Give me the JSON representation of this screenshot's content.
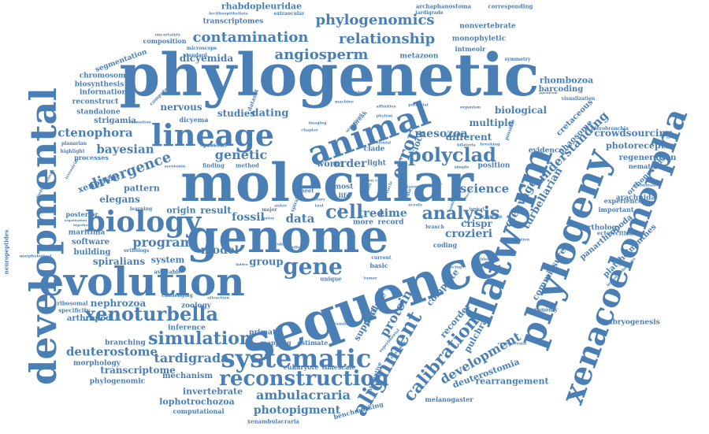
{
  "color": "#4a7fb5",
  "words": [
    {
      "text": "phylogenetic",
      "weight": 100
    },
    {
      "text": "molecular",
      "weight": 90
    },
    {
      "text": "sequence",
      "weight": 88
    },
    {
      "text": "genome",
      "weight": 80
    },
    {
      "text": "evolution",
      "weight": 72
    },
    {
      "text": "developmental",
      "weight": 70
    },
    {
      "text": "flatworm",
      "weight": 68
    },
    {
      "text": "phylogeny",
      "weight": 62
    },
    {
      "text": "xenacoelomorpha",
      "weight": 58
    },
    {
      "text": "animal",
      "weight": 56
    },
    {
      "text": "lineage",
      "weight": 52
    },
    {
      "text": "biology",
      "weight": 46
    },
    {
      "text": "systematic",
      "weight": 40
    },
    {
      "text": "reconstruction",
      "weight": 36
    },
    {
      "text": "xenoturbella",
      "weight": 32
    },
    {
      "text": "gene",
      "weight": 34
    },
    {
      "text": "polyclad",
      "weight": 30
    },
    {
      "text": "alignment",
      "weight": 30
    },
    {
      "text": "analysis",
      "weight": 28
    },
    {
      "text": "simulation",
      "weight": 28
    },
    {
      "text": "cell",
      "weight": 30
    },
    {
      "text": "error",
      "weight": 26
    },
    {
      "text": "calibration",
      "weight": 26
    },
    {
      "text": "phylogenomics",
      "weight": 24
    },
    {
      "text": "contamination",
      "weight": 22
    },
    {
      "text": "angiosperm",
      "weight": 22
    },
    {
      "text": "relationship",
      "weight": 22
    },
    {
      "text": "divergence",
      "weight": 22
    },
    {
      "text": "ambulacraria",
      "weight": 20
    },
    {
      "text": "tardigrada",
      "weight": 20
    },
    {
      "text": "development",
      "weight": 20
    },
    {
      "text": "protein",
      "weight": 20
    },
    {
      "text": "genetic",
      "weight": 20
    },
    {
      "text": "bayesian",
      "weight": 18
    },
    {
      "text": "ctenophora",
      "weight": 18
    },
    {
      "text": "deuterostome",
      "weight": 18
    },
    {
      "text": "photopigment",
      "weight": 16
    },
    {
      "text": "program",
      "weight": 18
    },
    {
      "text": "model",
      "weight": 18
    },
    {
      "text": "fossil",
      "weight": 18
    },
    {
      "text": "science",
      "weight": 18
    },
    {
      "text": "crozieri",
      "weight": 16
    },
    {
      "text": "mesozoa",
      "weight": 18
    },
    {
      "text": "understanding",
      "weight": 18
    },
    {
      "text": "cleavage",
      "weight": 18
    },
    {
      "text": "turbellarian",
      "weight": 16
    },
    {
      "text": "data",
      "weight": 18
    },
    {
      "text": "tree",
      "weight": 18
    },
    {
      "text": "time",
      "weight": 16
    },
    {
      "text": "order",
      "weight": 16
    },
    {
      "text": "dating",
      "weight": 16
    },
    {
      "text": "studies",
      "weight": 14
    },
    {
      "text": "nervous",
      "weight": 14
    },
    {
      "text": "dicyemida",
      "weight": 14
    },
    {
      "text": "different",
      "weight": 14
    },
    {
      "text": "multiple",
      "weight": 14
    },
    {
      "text": "biological",
      "weight": 14
    },
    {
      "text": "nephrozoa",
      "weight": 14
    },
    {
      "text": "elegans",
      "weight": 14
    },
    {
      "text": "spiralians",
      "weight": 14
    },
    {
      "text": "transcriptome",
      "weight": 14
    },
    {
      "text": "invertebrate",
      "weight": 13
    },
    {
      "text": "lophotrochozoa",
      "weight": 13
    },
    {
      "text": "group",
      "weight": 14
    },
    {
      "text": "worm",
      "weight": 12
    },
    {
      "text": "clock",
      "weight": 12
    },
    {
      "text": "recorder",
      "weight": 12
    },
    {
      "text": "complete",
      "weight": 12
    },
    {
      "text": "analyse",
      "weight": 12
    },
    {
      "text": "support",
      "weight": 12
    },
    {
      "text": "pulchra",
      "weight": 12
    },
    {
      "text": "deuterostomia",
      "weight": 12
    },
    {
      "text": "rearrangement",
      "weight": 12
    },
    {
      "text": "commissure",
      "weight": 12
    },
    {
      "text": "crowdsourcing",
      "weight": 12
    },
    {
      "text": "photoreceptor",
      "weight": 11
    },
    {
      "text": "regeneration",
      "weight": 11
    },
    {
      "text": "cretaceous",
      "weight": 11
    },
    {
      "text": "phaosome",
      "weight": 10
    },
    {
      "text": "rhombozoa",
      "weight": 11
    },
    {
      "text": "barcoding",
      "weight": 11
    },
    {
      "text": "panarthropoda",
      "weight": 11
    },
    {
      "text": "platyhelminthes",
      "weight": 11
    },
    {
      "text": "embryogenesis",
      "weight": 10
    },
    {
      "text": "orthonectids",
      "weight": 10
    },
    {
      "text": "orthology",
      "weight": 10
    },
    {
      "text": "arachnida",
      "weight": 10
    },
    {
      "text": "nematoda",
      "weight": 9
    },
    {
      "text": "experience",
      "weight": 9
    },
    {
      "text": "important",
      "weight": 9
    },
    {
      "text": "ectolecithal",
      "weight": 8
    },
    {
      "text": "evidence",
      "weight": 10
    },
    {
      "text": "position",
      "weight": 10
    },
    {
      "text": "crispr",
      "weight": 12
    },
    {
      "text": "result",
      "weight": 13
    },
    {
      "text": "origin",
      "weight": 12
    },
    {
      "text": "system",
      "weight": 12
    },
    {
      "text": "pattern",
      "weight": 11
    },
    {
      "text": "xenopsin",
      "weight": 12
    },
    {
      "text": "strigamia",
      "weight": 11
    },
    {
      "text": "software",
      "weight": 11
    },
    {
      "text": "building",
      "weight": 11
    },
    {
      "text": "maritima",
      "weight": 10
    },
    {
      "text": "arthropod",
      "weight": 11
    },
    {
      "text": "zoology",
      "weight": 10
    },
    {
      "text": "mechanism",
      "weight": 11
    },
    {
      "text": "morphology",
      "weight": 10
    },
    {
      "text": "phylogenomic",
      "weight": 10
    },
    {
      "text": "branching",
      "weight": 10
    },
    {
      "text": "inference",
      "weight": 10
    },
    {
      "text": "primate",
      "weight": 10
    },
    {
      "text": "mapping",
      "weight": 9
    },
    {
      "text": "estimate",
      "weight": 9
    },
    {
      "text": "eukaryote",
      "weight": 9
    },
    {
      "text": "timescale",
      "weight": 9
    },
    {
      "text": "metazoon",
      "weight": 10
    },
    {
      "text": "monophyletic",
      "weight": 10
    },
    {
      "text": "nonvertebrate",
      "weight": 10
    },
    {
      "text": "intmeoir",
      "weight": 9
    },
    {
      "text": "segmentation",
      "weight": 10
    },
    {
      "text": "chromosome",
      "weight": 10
    },
    {
      "text": "biosynthesis",
      "weight": 10
    },
    {
      "text": "information",
      "weight": 10
    },
    {
      "text": "reconstruct",
      "weight": 10
    },
    {
      "text": "standalone",
      "weight": 10
    },
    {
      "text": "rhabdopleuridae",
      "weight": 12
    },
    {
      "text": "transcriptomes",
      "weight": 10
    },
    {
      "text": "archaphanostoma",
      "weight": 8
    },
    {
      "text": "corresponding",
      "weight": 8
    },
    {
      "text": "composition",
      "weight": 9
    },
    {
      "text": "dicyema",
      "weight": 9
    },
    {
      "text": "processes",
      "weight": 9
    },
    {
      "text": "posterior",
      "weight": 9
    },
    {
      "text": "neuropeptides",
      "weight": 8
    },
    {
      "text": "computational",
      "weight": 9
    },
    {
      "text": "xenambulacraria",
      "weight": 8
    },
    {
      "text": "benchmarking",
      "weight": 9
    },
    {
      "text": "integrative",
      "weight": 8
    },
    {
      "text": "melanogaster",
      "weight": 9
    },
    {
      "text": "ribosomal",
      "weight": 8
    },
    {
      "text": "specificity",
      "weight": 8
    },
    {
      "text": "taxonomy",
      "weight": 8
    },
    {
      "text": "coding",
      "weight": 9
    },
    {
      "text": "available",
      "weight": 8
    },
    {
      "text": "learning",
      "weight": 7
    },
    {
      "text": "more",
      "weight": 10
    },
    {
      "text": "record",
      "weight": 10
    },
    {
      "text": "light",
      "weight": 10
    },
    {
      "text": "most",
      "weight": 10
    },
    {
      "text": "life",
      "weight": 9
    },
    {
      "text": "sheet",
      "weight": 8
    },
    {
      "text": "clade",
      "weight": 10
    },
    {
      "text": "method",
      "weight": 8
    },
    {
      "text": "present",
      "weight": 8
    },
    {
      "text": "finding",
      "weight": 8
    },
    {
      "text": "basic",
      "weight": 9
    },
    {
      "text": "unique",
      "weight": 8
    },
    {
      "text": "planarian",
      "weight": 7
    },
    {
      "text": "highlight",
      "weight": 7
    },
    {
      "text": "visualization",
      "weight": 7
    },
    {
      "text": "symmetry",
      "weight": 7
    },
    {
      "text": "pterobranchia",
      "weight": 7
    },
    {
      "text": "illumination",
      "weight": 6
    },
    {
      "text": "lophotrochozoans",
      "weight": 6
    },
    {
      "text": "tardigrade",
      "weight": 7
    },
    {
      "text": "extraocular",
      "weight": 7
    },
    {
      "text": "lecithoepitheliata",
      "weight": 6
    },
    {
      "text": "uncertainty",
      "weight": 6
    },
    {
      "text": "microscope",
      "weight": 7
    },
    {
      "text": "standard",
      "weight": 7
    },
    {
      "text": "dataset",
      "weight": 8
    },
    {
      "text": "computer",
      "weight": 7
    },
    {
      "text": "formation",
      "weight": 6
    },
    {
      "text": "terrestrial",
      "weight": 6
    },
    {
      "text": "mediterranean",
      "weight": 6
    },
    {
      "text": "morphological",
      "weight": 6
    },
    {
      "text": "organisation",
      "weight": 5
    },
    {
      "text": "hypothesi",
      "weight": 5
    },
    {
      "text": "orthologs",
      "weight": 7
    },
    {
      "text": "challenging",
      "weight": 7
    },
    {
      "text": "attraction",
      "weight": 6
    },
    {
      "text": "current",
      "weight": 7
    },
    {
      "text": "tracing",
      "weight": 6
    },
    {
      "text": "blebbing",
      "weight": 6
    },
    {
      "text": "generation",
      "weight": 6
    },
    {
      "text": "controversial",
      "weight": 6
    },
    {
      "text": "translation",
      "weight": 6
    },
    {
      "text": "genomic",
      "weight": 6
    },
    {
      "text": "serotonin",
      "weight": 6
    },
    {
      "text": "typical",
      "weight": 6
    },
    {
      "text": "accurate",
      "weight": 7
    },
    {
      "text": "branch",
      "weight": 7
    },
    {
      "text": "aceols",
      "weight": 6
    },
    {
      "text": "taxon",
      "weight": 6
    },
    {
      "text": "simple",
      "weight": 6
    },
    {
      "text": "breaking",
      "weight": 6
    },
    {
      "text": "bilateria",
      "weight": 6
    },
    {
      "text": "organism",
      "weight": 6
    },
    {
      "text": "potential",
      "weight": 6
    },
    {
      "text": "member",
      "weight": 6
    },
    {
      "text": "machine",
      "weight": 6
    },
    {
      "text": "topologies",
      "weight": 5
    },
    {
      "text": "japonicum",
      "weight": 5
    },
    {
      "text": "imaging",
      "weight": 6
    },
    {
      "text": "effect",
      "weight": 6
    },
    {
      "text": "major",
      "weight": 7
    },
    {
      "text": "prior",
      "weight": 6
    },
    {
      "text": "sister",
      "weight": 6
    },
    {
      "text": "ciliary",
      "weight": 6
    },
    {
      "text": "tool",
      "weight": 6
    },
    {
      "text": "rubra",
      "weight": 6
    },
    {
      "text": "hidden",
      "weight": 5
    },
    {
      "text": "chapter",
      "weight": 6
    },
    {
      "text": "tumor",
      "weight": 6
    },
    {
      "text": "affinities",
      "weight": 6
    },
    {
      "text": "phylum",
      "weight": 6
    },
    {
      "text": "colonial",
      "weight": 6
    },
    {
      "text": "possible",
      "weight": 7
    },
    {
      "text": "spiral",
      "weight": 7
    },
    {
      "text": "common",
      "weight": 6
    },
    {
      "text": "break",
      "weight": 8
    },
    {
      "text": "sequenced",
      "weight": 6
    },
    {
      "text": "rate",
      "weight": 7
    },
    {
      "text": "circle",
      "weight": 6
    },
    {
      "text": "ancestor",
      "weight": 5
    },
    {
      "text": "several",
      "weight": 6
    },
    {
      "text": "number",
      "weight": 6
    },
    {
      "text": "strategies",
      "weight": 6
    },
    {
      "text": "experimental",
      "weight": 6
    },
    {
      "text": "flat",
      "weight": 6
    },
    {
      "text": "open code",
      "weight": 6
    },
    {
      "text": "discover",
      "weight": 5
    }
  ]
}
